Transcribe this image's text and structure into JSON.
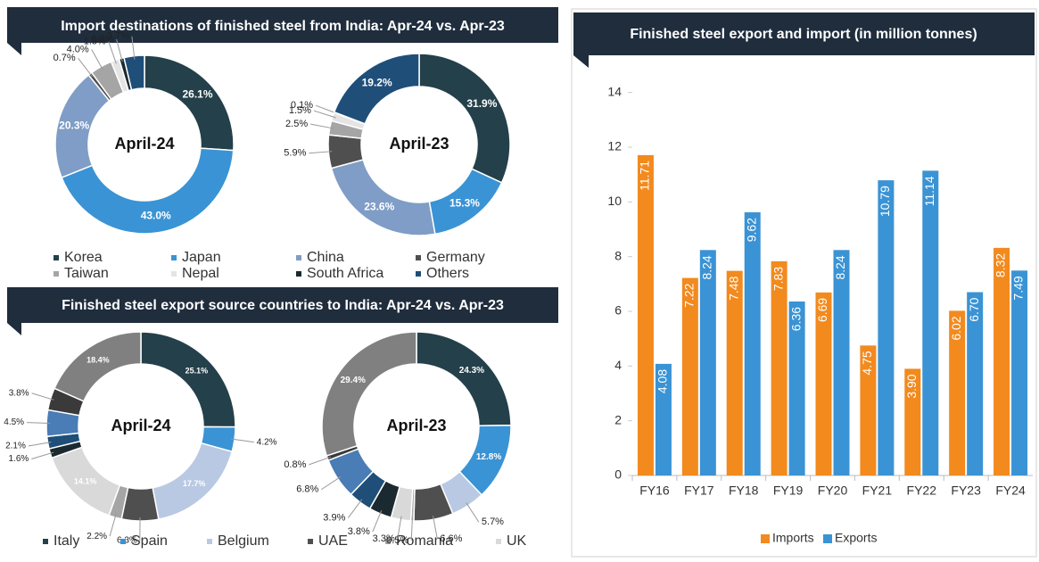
{
  "chart_data": [
    {
      "type": "pie",
      "title": "Import destinations of finished steel from India: Apr-24 vs. Apr-23",
      "center_label": "April-24",
      "categories": [
        "Korea",
        "Japan",
        "China",
        "Germany",
        "Taiwan",
        "Nepal",
        "South Africa",
        "Others"
      ],
      "colors": [
        "#24404a",
        "#3a93d4",
        "#7f9dc6",
        "#4f4f4f",
        "#a5a5a5",
        "#e4e4e4",
        "#1a2a30",
        "#1f4e79"
      ],
      "values": [
        26.1,
        43.0,
        20.3,
        0.7,
        4.0,
        1.5,
        0.9,
        3.7
      ],
      "value_labels": [
        "26.1%",
        "43.0%",
        "20.3%",
        "0.7%",
        "4.0%",
        "1.5%",
        "0.9%",
        "3.7%"
      ]
    },
    {
      "type": "pie",
      "center_label": "April-23",
      "values": [
        31.9,
        15.3,
        23.6,
        5.9,
        2.5,
        1.5,
        0.1,
        19.2
      ],
      "value_labels": [
        "31.9%",
        "15.3%",
        "23.6%",
        "5.9%",
        "2.5%",
        "1.5%",
        "0.1%",
        "19.2%"
      ]
    },
    {
      "type": "pie",
      "title": "Finished steel export source countries to India: Apr-24 vs. Apr-23",
      "center_label": "April-24",
      "categories": [
        "Italy",
        "Spain",
        "Belgium",
        "UAE",
        "Romania",
        "UK",
        null,
        null,
        null,
        null,
        null
      ],
      "colors": [
        "#24404a",
        "#3a93d4",
        "#b9c9e3",
        "#4f4f4f",
        "#a5a5a5",
        "#d9d9d9",
        "#1a2a30",
        "#1f4e79",
        "#4a7cb5",
        "#3a3a3a",
        "#808080"
      ],
      "values": [
        25.1,
        4.2,
        17.7,
        6.3,
        2.2,
        14.1,
        1.6,
        2.1,
        4.5,
        3.8,
        18.4
      ],
      "value_labels": [
        "25.1%",
        "4.2%",
        "17.7%",
        "6.3%",
        "2.2%",
        "14.1%",
        "1.6%",
        "2.1%",
        "4.5%",
        "3.8%",
        "18.4%"
      ]
    },
    {
      "type": "pie",
      "center_label": "April-23",
      "values": [
        24.3,
        12.8,
        5.7,
        6.6,
        0.5,
        3.3,
        3.8,
        3.9,
        6.8,
        0.8,
        29.4
      ],
      "value_labels": [
        "24.3%",
        "12.8%",
        "5.7%",
        "6.6%",
        "0.5%",
        "3.3%",
        "3.8%",
        "3.9%",
        "6.8%",
        "0.8%",
        "29.4%"
      ]
    },
    {
      "type": "bar",
      "title": "Finished steel export and import (in million tonnes)",
      "categories": [
        "FY16",
        "FY17",
        "FY18",
        "FY19",
        "FY20",
        "FY21",
        "FY22",
        "FY23",
        "FY24"
      ],
      "series": [
        {
          "name": "Imports",
          "color": "#f28a1e",
          "values": [
            11.71,
            7.22,
            7.48,
            7.83,
            6.69,
            4.75,
            3.9,
            6.02,
            8.32
          ],
          "value_labels": [
            "11.71",
            "7.22",
            "7.48",
            "7.83",
            "6.69",
            "4.75",
            "3.90",
            "6.02",
            "8.32"
          ]
        },
        {
          "name": "Exports",
          "color": "#3a93d4",
          "values": [
            4.08,
            8.24,
            9.62,
            6.36,
            8.24,
            10.79,
            11.14,
            6.7,
            7.49
          ],
          "value_labels": [
            "4.08",
            "8.24",
            "9.62",
            "6.36",
            "8.24",
            "10.79",
            "11.14",
            "6.70",
            "7.49"
          ]
        }
      ],
      "ylim": [
        0,
        15
      ],
      "yticks": [
        0,
        2,
        4,
        6,
        8,
        10,
        12,
        14
      ],
      "grid": false,
      "legend": "bottom"
    }
  ]
}
